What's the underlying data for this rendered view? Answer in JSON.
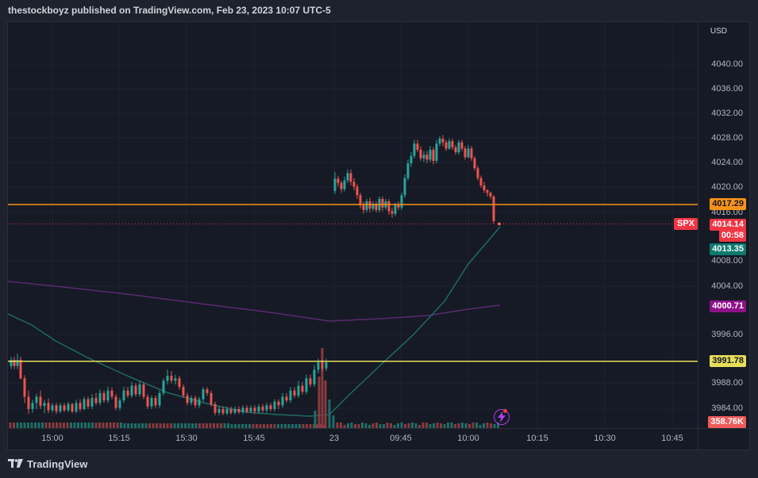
{
  "header": {
    "title": "thestockboyz published on TradingView.com, Feb 23, 2023 10:07 UTC-5"
  },
  "footer": {
    "brand": "TradingView",
    "logo_icon": "tradingview-logo-icon"
  },
  "symbol": {
    "ticker": "SPX"
  },
  "yaxis": {
    "currency": "USD",
    "ticks": [
      "4040.00",
      "4036.00",
      "4032.00",
      "4028.00",
      "4024.00",
      "4020.00",
      "4016.00",
      "4008.00",
      "4004.00",
      "3996.00",
      "3988.00",
      "3984.00"
    ]
  },
  "xaxis": {
    "ticks": [
      "15:00",
      "15:15",
      "15:30",
      "15:45",
      "23",
      "09:45",
      "10:00",
      "10:15",
      "10:30",
      "10:45"
    ]
  },
  "price_tags": {
    "resistance": "4017.29",
    "last_price": "4014.14",
    "countdown": "00:58",
    "ema_fast": "4013.35",
    "ema_slow": "4000.71",
    "support": "3991.78",
    "volume": "358.76K"
  },
  "colors": {
    "background": "#161a25",
    "up": "#26a69a",
    "down": "#ef5350",
    "resistance_line": "#f7931a",
    "support_line": "#e6de5a",
    "ema_fast": "#1f6b63",
    "ema_slow": "#5a2a6e",
    "last_price": "#f23645",
    "ema_slow_tag": "#8e118a"
  },
  "chart_data": {
    "type": "candlestick",
    "symbol": "SPX",
    "ylim": [
      3982,
      4046
    ],
    "horizontal_lines": [
      {
        "name": "resistance",
        "value": 4017.29
      },
      {
        "name": "support",
        "value": 3991.78
      }
    ],
    "last_price": 4014.14,
    "session_1_close_range": [
      3983,
      3992
    ],
    "session_2_range": [
      4015,
      4028
    ],
    "volume_last": "358.76K"
  }
}
